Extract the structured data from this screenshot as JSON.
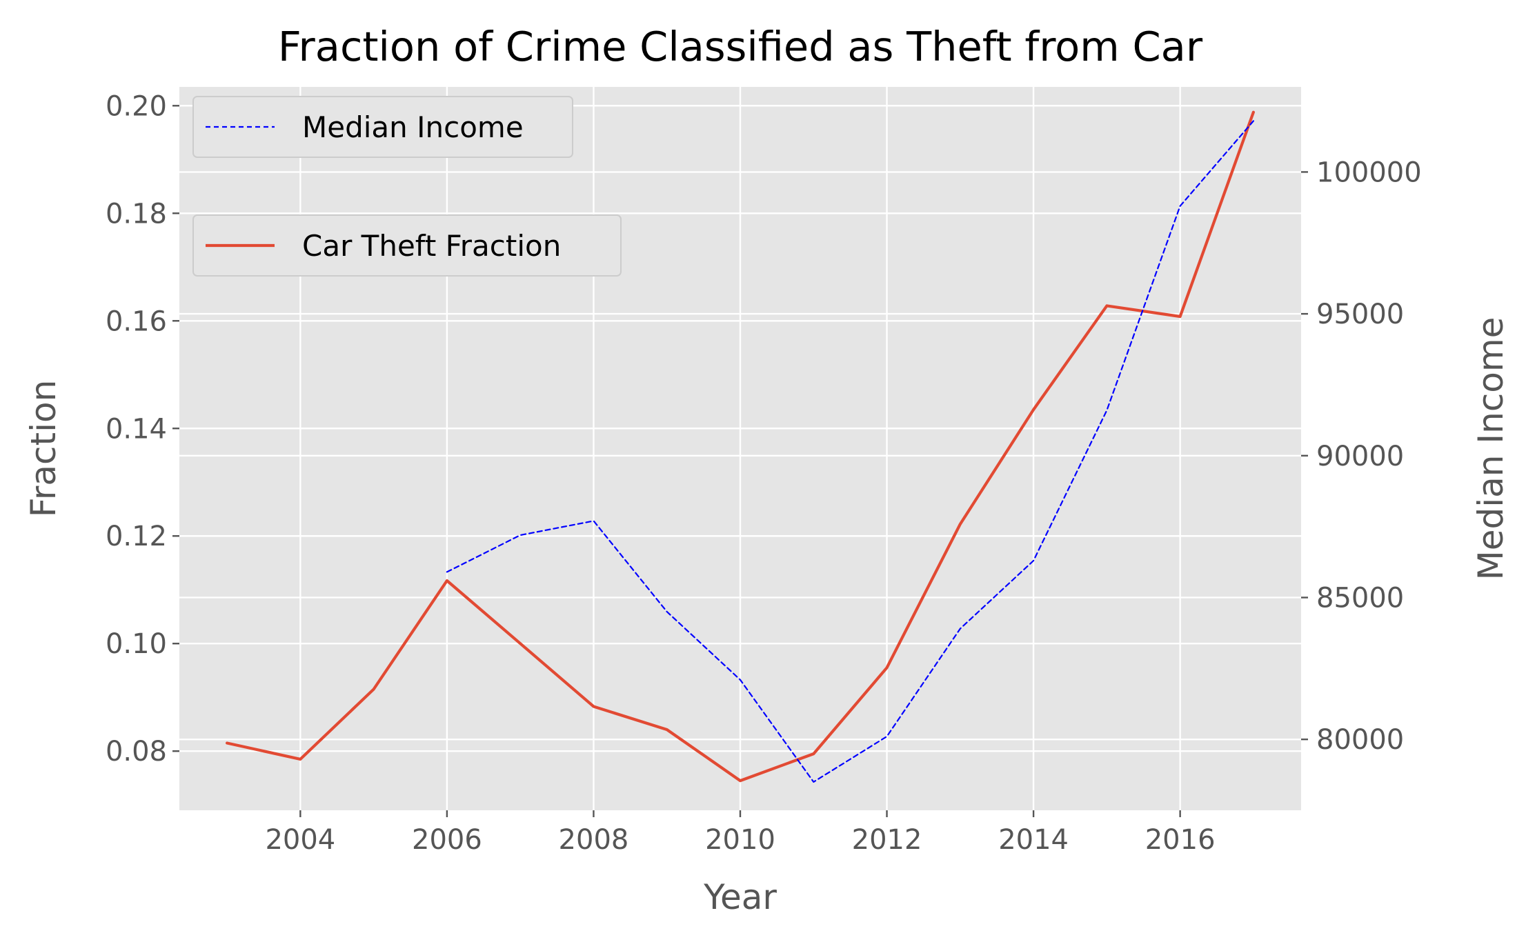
{
  "chart_data": {
    "type": "line",
    "title": "Fraction of Crime Classified as Theft from Car",
    "xlabel": "Year",
    "ylabel": "Fraction",
    "ylabel_right": "Median Income",
    "xlim": [
      2002.35,
      2017.65
    ],
    "ylim": [
      0.069,
      0.2035
    ],
    "ylim_right": [
      77500,
      103000
    ],
    "x_ticks": [
      2004,
      2006,
      2008,
      2010,
      2012,
      2014,
      2016
    ],
    "y_ticks": [
      0.08,
      0.1,
      0.12,
      0.14,
      0.16,
      0.18,
      0.2
    ],
    "y_tick_labels": [
      "0.08",
      "0.10",
      "0.12",
      "0.14",
      "0.16",
      "0.18",
      "0.20"
    ],
    "y_ticks_right": [
      80000,
      85000,
      90000,
      95000,
      100000
    ],
    "grid": true,
    "series": [
      {
        "name": "Car Theft Fraction",
        "axis": "left",
        "color": "#E24A33",
        "style": "solid",
        "legend_position": "upper-left-lower",
        "x": [
          2003,
          2004,
          2005,
          2006,
          2007,
          2008,
          2009,
          2010,
          2011,
          2012,
          2013,
          2014,
          2015,
          2016,
          2017
        ],
        "values": [
          0.0815,
          0.0785,
          0.0915,
          0.1117,
          0.1,
          0.0883,
          0.084,
          0.0745,
          0.0795,
          0.0955,
          0.1222,
          0.1435,
          0.1628,
          0.1608,
          0.1988
        ]
      },
      {
        "name": "Median Income",
        "axis": "right",
        "color": "#0000FF",
        "style": "dashed",
        "legend_position": "upper-left",
        "x": [
          2006,
          2007,
          2008,
          2009,
          2010,
          2011,
          2012,
          2013,
          2014,
          2015,
          2016,
          2017
        ],
        "values": [
          85900,
          87200,
          87700,
          84500,
          82100,
          78500,
          80100,
          83900,
          86300,
          91600,
          98800,
          101800
        ]
      }
    ]
  }
}
